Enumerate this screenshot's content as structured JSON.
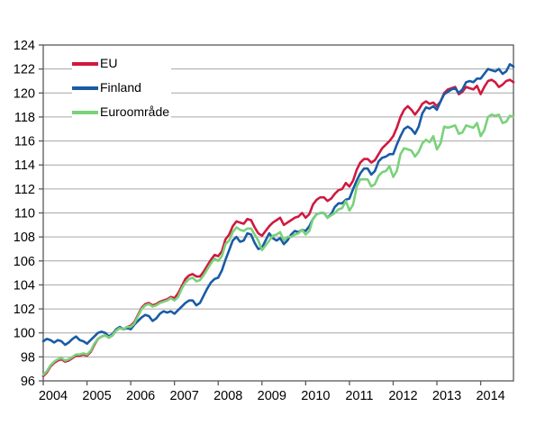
{
  "chart_data": {
    "type": "line",
    "title": "",
    "xlabel": "",
    "ylabel": "",
    "ylim": [
      96,
      124
    ],
    "y_tick_step": 2,
    "x_tick_labels": [
      "2004",
      "2005",
      "2006",
      "2007",
      "2008",
      "2009",
      "2010",
      "2011",
      "2012",
      "2013",
      "2014"
    ],
    "x_unit": "month",
    "x_range_note": "monthly points Jan 2004 - Oct 2014",
    "grid": true,
    "legend_position": "top-left-inside",
    "colors": {
      "grid": "#a6a6a6",
      "border": "#595959",
      "tick": "#595959",
      "text": "#000000",
      "background": "#ffffff"
    },
    "series": [
      {
        "name": "EU",
        "color": "#d01940",
        "values": [
          96.4,
          96.7,
          97.2,
          97.5,
          97.7,
          97.8,
          97.6,
          97.7,
          97.9,
          98.1,
          98.1,
          98.2,
          98.1,
          98.4,
          99.0,
          99.5,
          99.7,
          99.8,
          99.6,
          99.8,
          100.2,
          100.4,
          100.3,
          100.5,
          100.6,
          100.9,
          101.5,
          102.1,
          102.4,
          102.5,
          102.3,
          102.4,
          102.6,
          102.7,
          102.8,
          103.0,
          102.9,
          103.3,
          103.9,
          104.5,
          104.8,
          104.9,
          104.7,
          104.7,
          105.1,
          105.6,
          106.1,
          106.5,
          106.4,
          106.8,
          107.8,
          108.2,
          108.9,
          109.3,
          109.2,
          109.1,
          109.5,
          109.4,
          108.8,
          108.3,
          108.1,
          108.5,
          108.9,
          109.2,
          109.4,
          109.6,
          109.0,
          109.2,
          109.4,
          109.6,
          109.7,
          110.0,
          109.6,
          109.9,
          110.7,
          111.1,
          111.3,
          111.3,
          111.0,
          111.2,
          111.6,
          111.9,
          112.0,
          112.5,
          112.2,
          112.7,
          113.6,
          114.2,
          114.5,
          114.5,
          114.2,
          114.4,
          114.9,
          115.4,
          115.7,
          116.0,
          116.4,
          117.1,
          118.0,
          118.6,
          118.9,
          118.6,
          118.2,
          118.6,
          119.1,
          119.3,
          119.1,
          119.2,
          118.9,
          119.3,
          120.0,
          120.3,
          120.4,
          120.5,
          119.9,
          120.1,
          120.5,
          120.4,
          120.3,
          120.6,
          119.9,
          120.5,
          121.0,
          121.1,
          120.9,
          120.5,
          120.7,
          121.0,
          121.1,
          120.9
        ]
      },
      {
        "name": "Finland",
        "color": "#1a5ba6",
        "values": [
          99.3,
          99.5,
          99.4,
          99.2,
          99.4,
          99.3,
          99.0,
          99.2,
          99.5,
          99.7,
          99.4,
          99.3,
          99.1,
          99.4,
          99.7,
          100.0,
          100.1,
          100.0,
          99.7,
          99.9,
          100.3,
          100.5,
          100.3,
          100.4,
          100.3,
          100.7,
          101.0,
          101.3,
          101.5,
          101.4,
          101.0,
          101.2,
          101.6,
          101.8,
          101.7,
          101.8,
          101.6,
          101.9,
          102.2,
          102.5,
          102.7,
          102.7,
          102.3,
          102.5,
          103.1,
          103.7,
          104.2,
          104.5,
          104.6,
          105.2,
          106.1,
          106.9,
          107.7,
          108.0,
          107.6,
          107.7,
          108.3,
          108.2,
          107.5,
          107.0,
          107.1,
          107.7,
          108.3,
          107.9,
          107.7,
          107.9,
          107.4,
          107.7,
          108.2,
          108.5,
          108.4,
          108.6,
          108.5,
          108.9,
          109.5,
          109.9,
          110.0,
          110.0,
          109.6,
          109.9,
          110.5,
          110.8,
          110.8,
          111.1,
          111.2,
          112.0,
          112.7,
          113.3,
          113.7,
          113.7,
          113.2,
          113.5,
          114.3,
          114.6,
          114.7,
          114.9,
          114.9,
          115.7,
          116.4,
          117.0,
          117.2,
          117.0,
          116.6,
          117.2,
          118.3,
          118.8,
          118.7,
          118.9,
          118.6,
          119.3,
          119.9,
          120.1,
          120.3,
          120.4,
          120.0,
          120.3,
          120.9,
          121.0,
          120.9,
          121.2,
          121.2,
          121.6,
          122.0,
          121.9,
          121.8,
          122.0,
          121.6,
          121.8,
          122.4,
          122.2
        ]
      },
      {
        "name": "Euroområde",
        "color": "#79d279",
        "values": [
          96.5,
          96.8,
          97.3,
          97.6,
          97.8,
          97.9,
          97.7,
          97.8,
          98.0,
          98.2,
          98.2,
          98.3,
          98.2,
          98.5,
          99.1,
          99.5,
          99.7,
          99.8,
          99.6,
          99.8,
          100.2,
          100.4,
          100.3,
          100.5,
          100.5,
          100.8,
          101.4,
          102.0,
          102.3,
          102.4,
          102.2,
          102.3,
          102.5,
          102.6,
          102.7,
          102.9,
          102.7,
          103.0,
          103.7,
          104.2,
          104.5,
          104.6,
          104.3,
          104.4,
          104.8,
          105.3,
          105.8,
          106.2,
          106.0,
          106.4,
          107.4,
          107.7,
          108.4,
          108.8,
          108.6,
          108.5,
          108.7,
          108.7,
          108.2,
          107.7,
          106.9,
          107.3,
          107.7,
          108.1,
          108.2,
          108.4,
          107.7,
          108.0,
          108.0,
          108.2,
          108.3,
          108.6,
          108.2,
          108.5,
          109.5,
          109.9,
          110.0,
          110.0,
          109.6,
          109.8,
          110.0,
          110.3,
          110.4,
          111.0,
          110.2,
          110.7,
          112.2,
          112.8,
          112.8,
          112.8,
          112.2,
          112.4,
          113.1,
          113.4,
          113.5,
          113.9,
          113.0,
          113.5,
          114.9,
          115.4,
          115.3,
          115.2,
          114.7,
          115.1,
          115.8,
          116.1,
          115.9,
          116.4,
          115.3,
          115.8,
          117.2,
          117.1,
          117.2,
          117.3,
          116.6,
          116.7,
          117.3,
          117.2,
          117.1,
          117.5,
          116.4,
          116.9,
          118.0,
          118.2,
          118.1,
          118.2,
          117.5,
          117.6,
          118.1,
          118.0
        ]
      }
    ]
  },
  "legend": {
    "items": [
      {
        "label": "EU"
      },
      {
        "label": "Finland"
      },
      {
        "label": "Euroområde"
      }
    ]
  }
}
